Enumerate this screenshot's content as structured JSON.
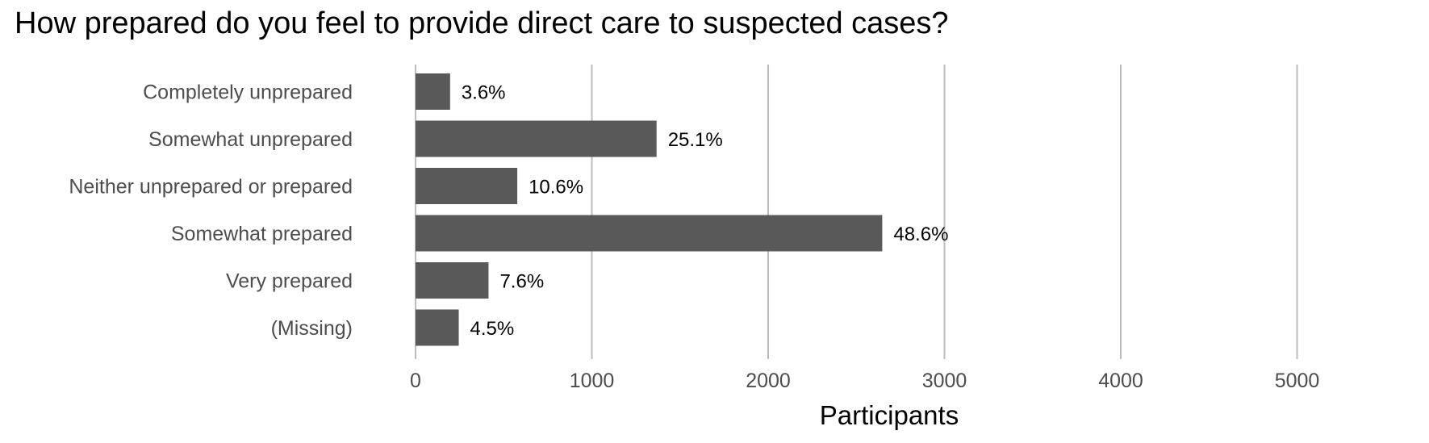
{
  "chart_data": {
    "type": "bar",
    "orientation": "horizontal",
    "title": "How prepared do you feel to provide direct care to suspected cases?",
    "xlabel": "Participants",
    "ylabel": "",
    "categories": [
      "Completely unprepared",
      "Somewhat unprepared",
      "Neither unprepared or prepared",
      "Somewhat prepared",
      "Very prepared",
      "(Missing)"
    ],
    "values": [
      196,
      1367,
      577,
      2647,
      414,
      245
    ],
    "data_labels": [
      "3.6%",
      "25.1%",
      "10.6%",
      "48.6%",
      "7.6%",
      "4.5%"
    ],
    "xlim": [
      0,
      5500
    ],
    "xticks": [
      0,
      1000,
      2000,
      3000,
      4000,
      5000
    ],
    "xtick_labels": [
      "0",
      "1000",
      "2000",
      "3000",
      "4000",
      "5000"
    ],
    "grid": "vertical major gridlines",
    "legend": "none",
    "colors": {
      "bar": "#595959",
      "grid": "#bdbdbd",
      "text": "#4d4d4d"
    }
  }
}
